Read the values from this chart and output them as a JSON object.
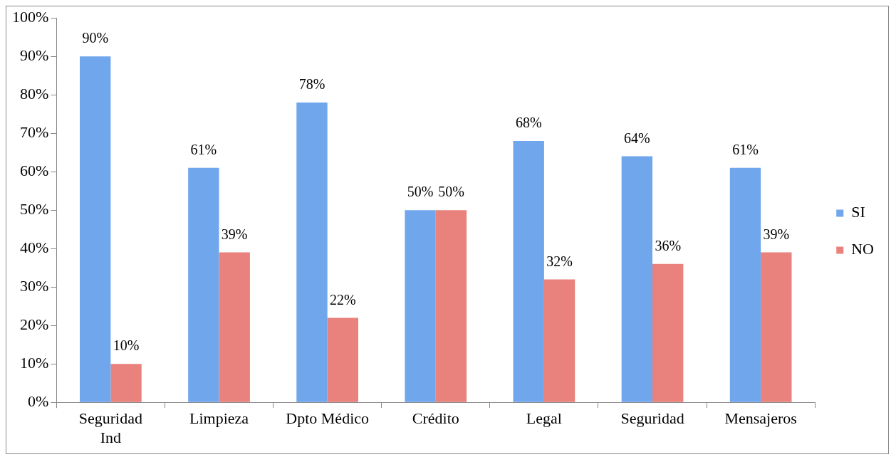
{
  "chart_data": {
    "type": "bar",
    "categories": [
      "Seguridad Ind",
      "Limpieza",
      "Dpto Médico",
      "Crédito",
      "Legal",
      "Seguridad",
      "Mensajeros"
    ],
    "series": [
      {
        "name": "SI",
        "color": "#6fa6ec",
        "values": [
          90,
          61,
          78,
          50,
          68,
          64,
          61
        ],
        "value_labels": [
          "90%",
          "61%",
          "78%",
          "50%",
          "68%",
          "64%",
          "61%"
        ]
      },
      {
        "name": "NO",
        "color": "#e9827d",
        "values": [
          10,
          39,
          22,
          50,
          32,
          36,
          39
        ],
        "value_labels": [
          "10%",
          "39%",
          "22%",
          "50%",
          "32%",
          "36%",
          "39%"
        ]
      }
    ],
    "ylim": [
      0,
      100
    ],
    "yticks": [
      {
        "value": 0,
        "label": "0%"
      },
      {
        "value": 10,
        "label": "10%"
      },
      {
        "value": 20,
        "label": "20%"
      },
      {
        "value": 30,
        "label": "30%"
      },
      {
        "value": 40,
        "label": "40%"
      },
      {
        "value": 50,
        "label": "50%"
      },
      {
        "value": 60,
        "label": "60%"
      },
      {
        "value": 70,
        "label": "70%"
      },
      {
        "value": 80,
        "label": "80%"
      },
      {
        "value": 90,
        "label": "90%"
      },
      {
        "value": 100,
        "label": "100%"
      }
    ],
    "grid": false,
    "legend": "right"
  }
}
